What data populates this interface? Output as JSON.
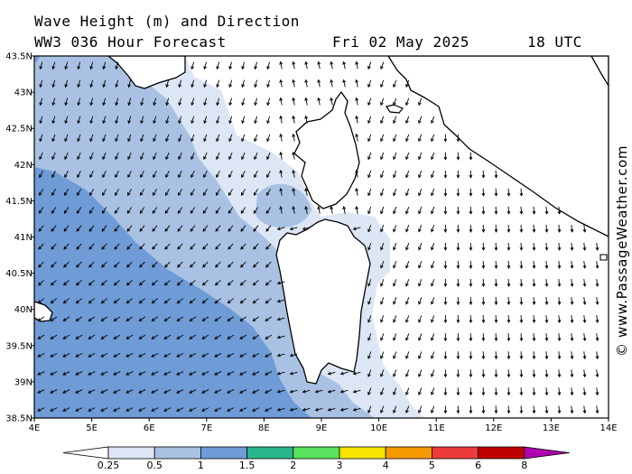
{
  "header": {
    "title": "Wave Height (m) and Direction",
    "model": "WW3 036 Hour Forecast",
    "date": "Fri 02 May 2025",
    "time": "18 UTC"
  },
  "credit": "© www.PassageWeather.com",
  "axes": {
    "lon_labels": [
      "4E",
      "5E",
      "6E",
      "7E",
      "8E",
      "9E",
      "10E",
      "11E",
      "12E",
      "13E",
      "14E"
    ],
    "lat_labels": [
      "43.5N",
      "43N",
      "42.5N",
      "42N",
      "41.5N",
      "41N",
      "40.5N",
      "40N",
      "39.5N",
      "39N",
      "38.5N"
    ]
  },
  "legend": {
    "levels": [
      "0.25",
      "0.5",
      "1",
      "1.5",
      "2",
      "3",
      "4",
      "5",
      "6",
      "8"
    ],
    "colors": {
      "below": "#ffffff",
      "b0": "#dde6f5",
      "b1": "#a9c2e4",
      "b2": "#6f9bd6",
      "b3": "#29b68d",
      "b4": "#59e35e",
      "b5": "#f5e500",
      "b6": "#f59a00",
      "b7": "#ec3b3b",
      "b8": "#c00000",
      "above": "#b100b1"
    }
  },
  "map_colors": {
    "calm": "#ffffff",
    "light": "#dde6f5",
    "medium": "#a9c2e4",
    "strong": "#6f9bd6",
    "land": "#ffffff",
    "coast": "#000000"
  },
  "wave_direction_arrows": "field of small black arrows showing wave direction"
}
